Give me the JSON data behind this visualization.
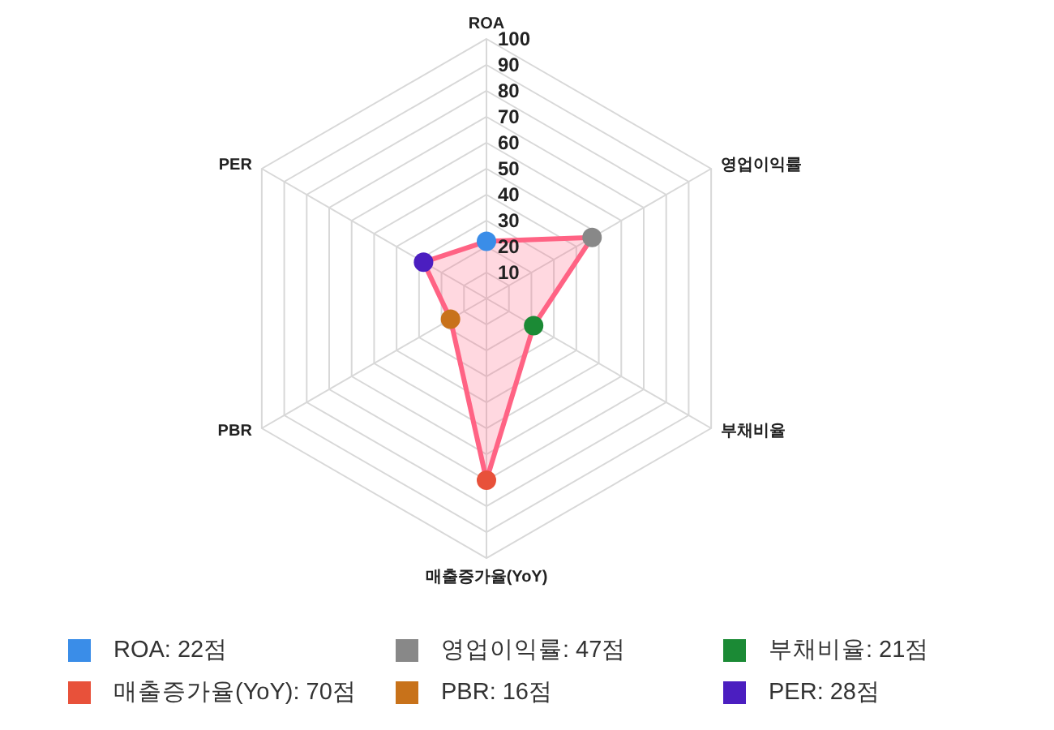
{
  "chart_data": {
    "type": "radar",
    "categories": [
      "ROA",
      "영업이익률",
      "부채비율",
      "매출증가율(YoY)",
      "PBR",
      "PER"
    ],
    "series": [
      {
        "color": "#ff6384",
        "values": [
          22,
          47,
          21,
          70,
          16,
          28
        ],
        "colors": [
          "#3a8de8",
          "#888888",
          "#1b8a35",
          "#e8513a",
          "#c8721a",
          "#4b1ec0"
        ]
      }
    ],
    "ylim": [
      0,
      100
    ],
    "yticks": [
      10,
      20,
      30,
      40,
      50,
      60,
      70,
      80,
      90,
      100
    ],
    "annotations": [
      "ROA: 22점",
      "영업이익률: 47점",
      "부채비율: 21점",
      "매출증가율(YoY): 70점",
      "PBR: 16점",
      "PER: 28점"
    ],
    "grid": true,
    "marker": "circle",
    "line_style": "solid"
  }
}
